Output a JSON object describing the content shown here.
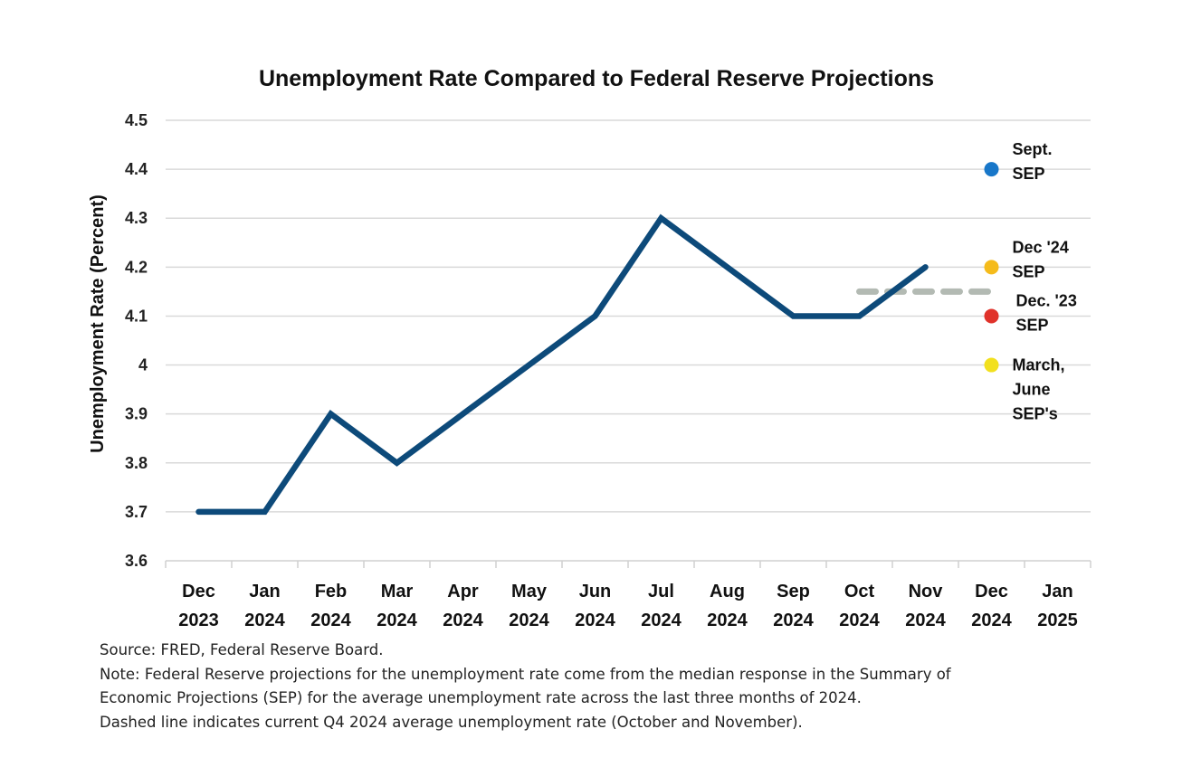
{
  "chart_data": {
    "type": "line",
    "title": "Unemployment Rate Compared to Federal Reserve Projections",
    "xlabel": "",
    "ylabel": "Unemployment Rate (Percent)",
    "ylim": [
      3.6,
      4.5
    ],
    "yticks": [
      3.6,
      3.7,
      3.8,
      3.9,
      4.0,
      4.1,
      4.2,
      4.3,
      4.4,
      4.5
    ],
    "ytick_labels": [
      "3.6",
      "3.7",
      "3.8",
      "3.9",
      "4",
      "4.1",
      "4.2",
      "4.3",
      "4.4",
      "4.5"
    ],
    "grid": true,
    "categories": [
      {
        "month": "Dec",
        "year": "2023"
      },
      {
        "month": "Jan",
        "year": "2024"
      },
      {
        "month": "Feb",
        "year": "2024"
      },
      {
        "month": "Mar",
        "year": "2024"
      },
      {
        "month": "Apr",
        "year": "2024"
      },
      {
        "month": "May",
        "year": "2024"
      },
      {
        "month": "Jun",
        "year": "2024"
      },
      {
        "month": "Jul",
        "year": "2024"
      },
      {
        "month": "Aug",
        "year": "2024"
      },
      {
        "month": "Sep",
        "year": "2024"
      },
      {
        "month": "Oct",
        "year": "2024"
      },
      {
        "month": "Nov",
        "year": "2024"
      },
      {
        "month": "Dec",
        "year": "2024"
      },
      {
        "month": "Jan",
        "year": "2025"
      }
    ],
    "series": [
      {
        "name": "Unemployment Rate",
        "color": "#0d4a7a",
        "values": [
          3.7,
          3.7,
          3.9,
          3.8,
          3.9,
          4.0,
          4.1,
          4.3,
          4.2,
          4.1,
          4.1,
          4.2
        ]
      }
    ],
    "dashed_line": {
      "name": "Current Q4 2024 average unemployment rate",
      "value": 4.15,
      "from_category": 10,
      "to_category": 12,
      "color": "#b3bab3"
    },
    "projections": [
      {
        "name": "Sept. SEP",
        "lines": [
          "Sept.",
          "SEP"
        ],
        "value": 4.4,
        "category": 12,
        "color": "#1877c9"
      },
      {
        "name": "Dec '24 SEP",
        "lines": [
          "Dec '24",
          "SEP"
        ],
        "value": 4.2,
        "category": 12,
        "color": "#f5bb1b"
      },
      {
        "name": "Dec. '23 SEP",
        "lines": [
          "Dec. '23",
          "SEP"
        ],
        "value": 4.1,
        "category": 12,
        "color": "#e0322a"
      },
      {
        "name": "March, June SEP's",
        "lines": [
          "March,",
          "June",
          "SEP's"
        ],
        "value": 4.0,
        "category": 12,
        "color": "#f2e01e"
      }
    ]
  },
  "footer": {
    "source": "Source: FRED, Federal Reserve Board.",
    "note_line1": "Note: Federal Reserve projections for the unemployment rate come from the median response in the Summary of",
    "note_line2": "Economic Projections (SEP) for the average unemployment rate across the last three months of 2024.",
    "note_line3": "Dashed line indicates current Q4 2024 average unemployment rate (October and November)."
  }
}
